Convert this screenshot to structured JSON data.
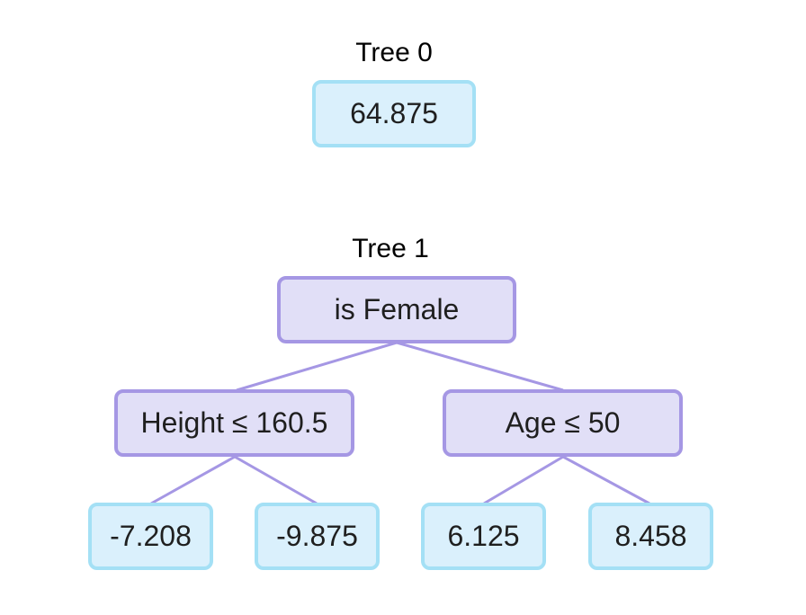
{
  "tree0": {
    "title": "Tree 0",
    "root": {
      "value": "64.875"
    }
  },
  "tree1": {
    "title": "Tree 1",
    "root": {
      "label": "is Female"
    },
    "left": {
      "label": "Height ≤ 160.5",
      "leaves": [
        "-7.208",
        "-9.875"
      ]
    },
    "right": {
      "label": "Age ≤ 50",
      "leaves": [
        "6.125",
        "8.458"
      ]
    }
  },
  "colors": {
    "leaf_fill": "#daf0fc",
    "leaf_border": "#a4e0f5",
    "split_fill": "#e1dff7",
    "split_border": "#a597e4"
  }
}
